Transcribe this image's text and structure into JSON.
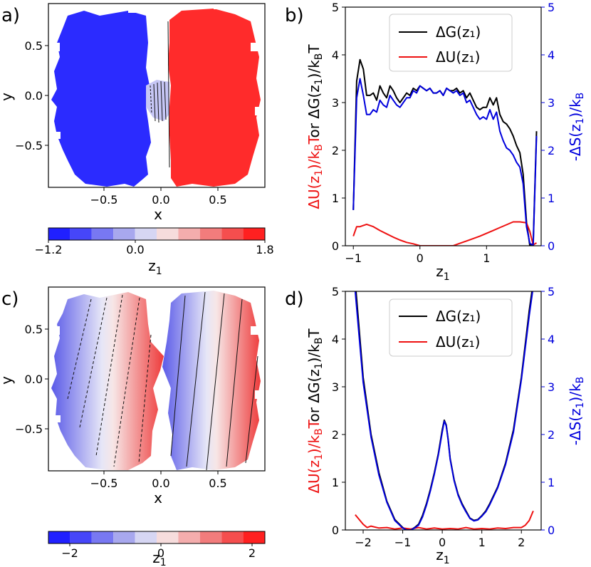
{
  "panel_labels": [
    "a)",
    "b)",
    "c)",
    "d)"
  ],
  "chart_data": [
    {
      "panel": "a)",
      "type": "heatmap",
      "xlabel": "x",
      "ylabel": "y",
      "xticks": [
        "−0.5",
        "0.0",
        "0.5"
      ],
      "yticks": [
        "0.5",
        "0.0",
        "−0.5"
      ],
      "colorbar": {
        "label": "z",
        "label_sub": "1",
        "ticks": [
          "−1.2",
          "0.0",
          "1.8"
        ],
        "range": [
          -1.2,
          1.8
        ]
      },
      "regions": [
        {
          "color": "#2b2bff",
          "z_approx": -1.1
        },
        {
          "color": "#ff2b2b",
          "z_approx": 1.7
        }
      ]
    },
    {
      "panel": "b)",
      "type": "line",
      "xlabel": "z",
      "xlabel_sub": "1",
      "ylabel_left": "ΔU(z₁)/k_BT or ΔG(z₁)/k_BT",
      "ylabel_right": "-ΔS(z₁)/k_B",
      "xlim": [
        -1.12,
        1.82
      ],
      "ylim": [
        0,
        5
      ],
      "xticks": [
        -1,
        0,
        1
      ],
      "yticks": [
        0,
        1,
        2,
        3,
        4,
        5
      ],
      "legend": [
        "ΔG(z₁)",
        "ΔU(z₁)"
      ],
      "series": [
        {
          "name": "ΔG(z₁)",
          "color": "#000000",
          "x": [
            -1.0,
            -0.95,
            -0.9,
            -0.85,
            -0.8,
            -0.75,
            -0.7,
            -0.65,
            -0.6,
            -0.55,
            -0.5,
            -0.45,
            -0.4,
            -0.35,
            -0.3,
            -0.25,
            -0.2,
            -0.15,
            -0.1,
            -0.05,
            0.0,
            0.05,
            0.1,
            0.15,
            0.2,
            0.25,
            0.3,
            0.35,
            0.4,
            0.45,
            0.5,
            0.55,
            0.6,
            0.65,
            0.7,
            0.75,
            0.8,
            0.85,
            0.9,
            0.95,
            1.0,
            1.05,
            1.1,
            1.15,
            1.2,
            1.25,
            1.3,
            1.35,
            1.4,
            1.45,
            1.5,
            1.55,
            1.6,
            1.65,
            1.7,
            1.75
          ],
          "values": [
            0.75,
            3.45,
            3.9,
            3.7,
            3.15,
            3.15,
            3.2,
            3.05,
            3.35,
            3.2,
            3.1,
            3.35,
            3.25,
            3.1,
            3.0,
            3.1,
            3.2,
            3.15,
            3.3,
            3.25,
            3.35,
            3.3,
            3.25,
            3.3,
            3.2,
            3.2,
            3.25,
            3.15,
            3.3,
            3.25,
            3.25,
            3.3,
            3.2,
            3.25,
            3.1,
            3.2,
            3.05,
            2.9,
            2.85,
            2.9,
            2.9,
            3.1,
            2.95,
            3.1,
            2.75,
            2.6,
            2.55,
            2.45,
            2.3,
            2.1,
            1.95,
            1.5,
            0.5,
            0.0,
            0.05,
            2.4
          ]
        },
        {
          "name": "ΔU(z₁)",
          "color": "#ee1111",
          "x": [
            -1.0,
            -0.95,
            -0.9,
            -0.8,
            -0.7,
            -0.6,
            -0.5,
            -0.4,
            -0.3,
            -0.2,
            -0.1,
            0.0,
            0.1,
            0.2,
            0.3,
            0.4,
            0.5,
            0.6,
            0.7,
            0.8,
            0.9,
            1.0,
            1.1,
            1.2,
            1.3,
            1.4,
            1.5,
            1.6,
            1.65,
            1.7,
            1.75
          ],
          "values": [
            0.2,
            0.4,
            0.4,
            0.45,
            0.4,
            0.32,
            0.25,
            0.18,
            0.12,
            0.07,
            0.04,
            0.0,
            0.0,
            0.0,
            0.0,
            0.0,
            0.0,
            0.05,
            0.1,
            0.15,
            0.2,
            0.26,
            0.32,
            0.38,
            0.44,
            0.5,
            0.5,
            0.48,
            0.3,
            0.02,
            0.06
          ]
        },
        {
          "name": "-ΔS(z₁)/k_B",
          "color": "#0000dd",
          "axis": "right",
          "x": [
            -1.0,
            -0.95,
            -0.9,
            -0.85,
            -0.8,
            -0.75,
            -0.7,
            -0.65,
            -0.6,
            -0.55,
            -0.5,
            -0.45,
            -0.4,
            -0.35,
            -0.3,
            -0.25,
            -0.2,
            -0.15,
            -0.1,
            -0.05,
            0.0,
            0.05,
            0.1,
            0.15,
            0.2,
            0.25,
            0.3,
            0.35,
            0.4,
            0.45,
            0.5,
            0.55,
            0.6,
            0.65,
            0.7,
            0.75,
            0.8,
            0.85,
            0.9,
            0.95,
            1.0,
            1.05,
            1.1,
            1.15,
            1.2,
            1.25,
            1.3,
            1.35,
            1.4,
            1.45,
            1.5,
            1.55,
            1.6,
            1.65,
            1.7,
            1.75
          ],
          "values": [
            0.75,
            3.1,
            3.5,
            3.15,
            2.75,
            2.75,
            2.85,
            2.8,
            3.05,
            2.95,
            2.9,
            3.15,
            3.05,
            2.95,
            2.9,
            3.0,
            3.1,
            3.1,
            3.25,
            3.2,
            3.35,
            3.3,
            3.25,
            3.3,
            3.2,
            3.2,
            3.25,
            3.15,
            3.3,
            3.25,
            3.2,
            3.25,
            3.15,
            3.2,
            3.0,
            3.05,
            2.9,
            2.75,
            2.65,
            2.7,
            2.65,
            2.85,
            2.65,
            2.8,
            2.4,
            2.2,
            2.05,
            2.0,
            1.9,
            1.75,
            1.65,
            1.3,
            0.4,
            0.05,
            0.0,
            2.3
          ]
        }
      ]
    },
    {
      "panel": "c)",
      "type": "heatmap",
      "xlabel": "x",
      "ylabel": "y",
      "xticks": [
        "−0.5",
        "0.0",
        "0.5"
      ],
      "yticks": [
        "0.5",
        "0.0",
        "−0.5"
      ],
      "colorbar": {
        "label": "z",
        "label_sub": "1",
        "ticks": [
          "−2",
          "0",
          "2"
        ],
        "range": [
          -2.5,
          2.5
        ]
      }
    },
    {
      "panel": "d)",
      "type": "line",
      "xlabel": "z",
      "xlabel_sub": "1",
      "ylabel_left": "ΔU(z₁)/k_BT or ΔG(z₁)/k_BT",
      "ylabel_right": "-ΔS(z₁)/k_B",
      "xlim": [
        -2.45,
        2.5
      ],
      "ylim": [
        0,
        5
      ],
      "xticks": [
        -2,
        -1,
        0,
        1,
        2
      ],
      "yticks": [
        0,
        1,
        2,
        3,
        4,
        5
      ],
      "legend": [
        "ΔG(z₁)",
        "ΔU(z₁)"
      ],
      "series": [
        {
          "name": "ΔG(z₁)",
          "color": "#000000",
          "x": [
            -2.2,
            -2.0,
            -1.8,
            -1.6,
            -1.4,
            -1.2,
            -1.0,
            -0.9,
            -0.8,
            -0.7,
            -0.6,
            -0.5,
            -0.4,
            -0.3,
            -0.2,
            -0.1,
            0.0,
            0.05,
            0.1,
            0.15,
            0.2,
            0.3,
            0.4,
            0.5,
            0.6,
            0.7,
            0.8,
            0.9,
            1.0,
            1.1,
            1.2,
            1.4,
            1.6,
            1.8,
            2.0,
            2.2,
            2.3
          ],
          "values": [
            5.2,
            3.2,
            2.0,
            1.2,
            0.6,
            0.22,
            0.05,
            0.0,
            0.0,
            0.05,
            0.12,
            0.3,
            0.55,
            0.85,
            1.2,
            1.6,
            2.1,
            2.3,
            2.2,
            1.9,
            1.5,
            1.05,
            0.75,
            0.55,
            0.4,
            0.25,
            0.2,
            0.22,
            0.3,
            0.4,
            0.55,
            0.9,
            1.4,
            2.1,
            3.2,
            4.6,
            5.2
          ]
        },
        {
          "name": "ΔU(z₁)",
          "color": "#ee1111",
          "x": [
            -2.2,
            -2.0,
            -1.9,
            -1.8,
            -1.6,
            -1.4,
            -1.2,
            -1.0,
            -0.8,
            -0.6,
            -0.4,
            -0.2,
            0.0,
            0.2,
            0.4,
            0.6,
            0.8,
            1.0,
            1.2,
            1.4,
            1.6,
            1.8,
            2.0,
            2.1,
            2.2,
            2.3
          ],
          "values": [
            0.32,
            0.12,
            0.05,
            0.08,
            0.04,
            0.05,
            0.02,
            0.04,
            0.02,
            0.05,
            0.02,
            0.04,
            0.02,
            0.03,
            0.02,
            0.05,
            0.02,
            0.03,
            0.02,
            0.04,
            0.03,
            0.05,
            0.05,
            0.1,
            0.2,
            0.4
          ]
        },
        {
          "name": "-ΔS(z₁)/k_B",
          "color": "#0000dd",
          "axis": "right",
          "x": [
            -2.2,
            -2.0,
            -1.8,
            -1.6,
            -1.4,
            -1.2,
            -1.0,
            -0.9,
            -0.8,
            -0.7,
            -0.6,
            -0.5,
            -0.4,
            -0.3,
            -0.2,
            -0.1,
            0.0,
            0.05,
            0.1,
            0.15,
            0.2,
            0.3,
            0.4,
            0.5,
            0.6,
            0.7,
            0.8,
            0.9,
            1.0,
            1.1,
            1.2,
            1.4,
            1.6,
            1.8,
            2.0,
            2.2,
            2.3
          ],
          "values": [
            5.0,
            3.1,
            1.95,
            1.15,
            0.58,
            0.2,
            0.04,
            0.0,
            0.0,
            0.04,
            0.1,
            0.27,
            0.52,
            0.82,
            1.17,
            1.57,
            2.05,
            2.28,
            2.18,
            1.88,
            1.48,
            1.03,
            0.73,
            0.53,
            0.38,
            0.24,
            0.19,
            0.21,
            0.29,
            0.38,
            0.53,
            0.88,
            1.37,
            2.05,
            3.15,
            4.5,
            5.1
          ]
        }
      ]
    }
  ]
}
